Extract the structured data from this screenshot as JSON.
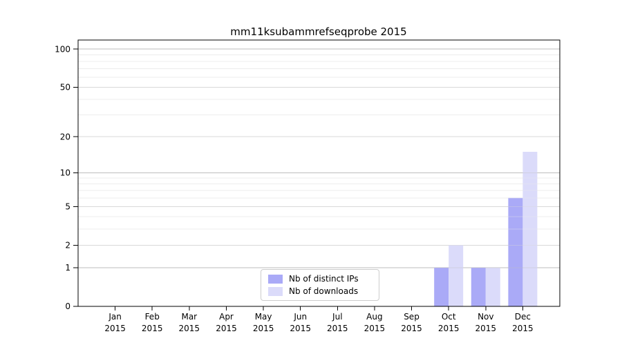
{
  "chart_data": {
    "type": "bar",
    "title": "mm11ksubammrefseqprobe 2015",
    "categories": [
      "Jan 2015",
      "Feb 2015",
      "Mar 2015",
      "Apr 2015",
      "May 2015",
      "Jun 2015",
      "Jul 2015",
      "Aug 2015",
      "Sep 2015",
      "Oct 2015",
      "Nov 2015",
      "Dec 2015"
    ],
    "series": [
      {
        "name": "Nb of distinct IPs",
        "color": "#aaaaf7",
        "values": [
          0,
          0,
          0,
          0,
          0,
          0,
          0,
          0,
          0,
          1,
          1,
          6
        ]
      },
      {
        "name": "Nb of downloads",
        "color": "#dbdbfa",
        "values": [
          0,
          0,
          0,
          0,
          0,
          0,
          0,
          0,
          0,
          2,
          1,
          15
        ]
      }
    ],
    "yscale": "log1p",
    "ylim": [
      0,
      118
    ],
    "yticks": [
      0,
      1,
      2,
      5,
      10,
      20,
      50,
      100
    ],
    "minor_yticks": [
      3,
      4,
      6,
      7,
      8,
      9,
      30,
      40,
      60,
      70,
      80,
      90
    ],
    "grid": "horizontal",
    "legend_position": "lower-center-inside",
    "grid_colors": {
      "major": "#bdbdbd",
      "mid": "#d9d9d9",
      "minor": "#ececec"
    }
  }
}
